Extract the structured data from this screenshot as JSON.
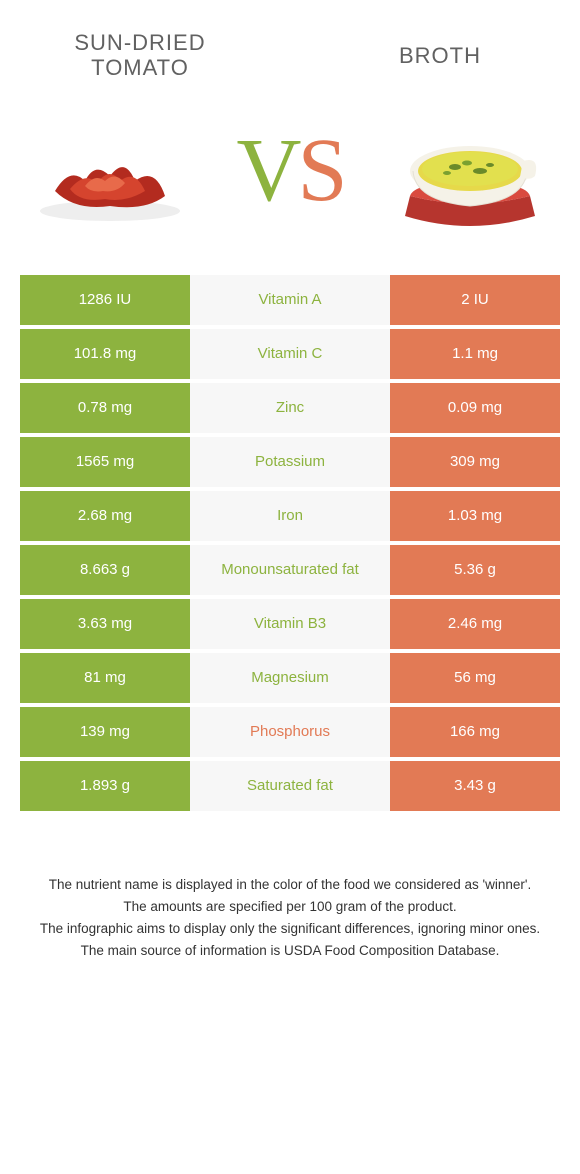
{
  "colors": {
    "left": "#8db33f",
    "right": "#e27a55",
    "left_text_winner": "#8db33f",
    "right_text_winner": "#e27a55",
    "vs_left": "#8db33f",
    "vs_right": "#e27a55"
  },
  "left_title": "Sun-dried tomato",
  "right_title": "Broth",
  "vs_text": "VS",
  "rows": [
    {
      "left": "1286 IU",
      "nutrient": "Vitamin A",
      "right": "2 IU",
      "winner": "left"
    },
    {
      "left": "101.8 mg",
      "nutrient": "Vitamin C",
      "right": "1.1 mg",
      "winner": "left"
    },
    {
      "left": "0.78 mg",
      "nutrient": "Zinc",
      "right": "0.09 mg",
      "winner": "left"
    },
    {
      "left": "1565 mg",
      "nutrient": "Potassium",
      "right": "309 mg",
      "winner": "left"
    },
    {
      "left": "2.68 mg",
      "nutrient": "Iron",
      "right": "1.03 mg",
      "winner": "left"
    },
    {
      "left": "8.663 g",
      "nutrient": "Monounsaturated fat",
      "right": "5.36 g",
      "winner": "left"
    },
    {
      "left": "3.63 mg",
      "nutrient": "Vitamin B3",
      "right": "2.46 mg",
      "winner": "left"
    },
    {
      "left": "81 mg",
      "nutrient": "Magnesium",
      "right": "56 mg",
      "winner": "left"
    },
    {
      "left": "139 mg",
      "nutrient": "Phosphorus",
      "right": "166 mg",
      "winner": "right"
    },
    {
      "left": "1.893 g",
      "nutrient": "Saturated fat",
      "right": "3.43 g",
      "winner": "left"
    }
  ],
  "footer": [
    "The nutrient name is displayed in the color of the food we considered as 'winner'.",
    "The amounts are specified per 100 gram of the product.",
    "The infographic aims to display only the significant differences, ignoring minor ones.",
    "The main source of information is USDA Food Composition Database."
  ]
}
